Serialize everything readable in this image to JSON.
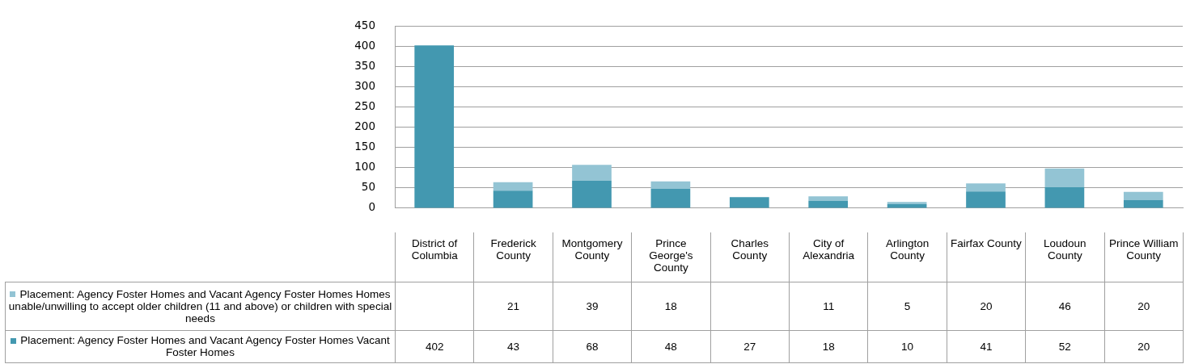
{
  "chart_data": {
    "type": "bar",
    "stacked": true,
    "categories": [
      "District of Columbia",
      "Frederick County",
      "Montgomery County",
      "Prince George's County",
      "Charles County",
      "City of Alexandria",
      "Arlington County",
      "Fairfax County",
      "Loudoun County",
      "Prince William County"
    ],
    "series": [
      {
        "name": "Placement: Agency Foster Homes and Vacant Agency Foster Homes Vacant Foster Homes",
        "color": "#4398b0",
        "values": [
          402,
          43,
          68,
          48,
          27,
          18,
          10,
          41,
          52,
          20
        ]
      },
      {
        "name": "Placement: Agency Foster Homes and Vacant Agency Foster Homes Homes unable/unwilling to accept older children (11 and above) or children with special needs",
        "color": "#93c4d4",
        "values": [
          null,
          21,
          39,
          18,
          null,
          11,
          5,
          20,
          46,
          20
        ]
      }
    ],
    "ylim": [
      0,
      450
    ],
    "yticks": [
      0,
      50,
      100,
      150,
      200,
      250,
      300,
      350,
      400,
      450
    ],
    "grid": "y",
    "legend": "bottom left",
    "data_labels": true
  }
}
